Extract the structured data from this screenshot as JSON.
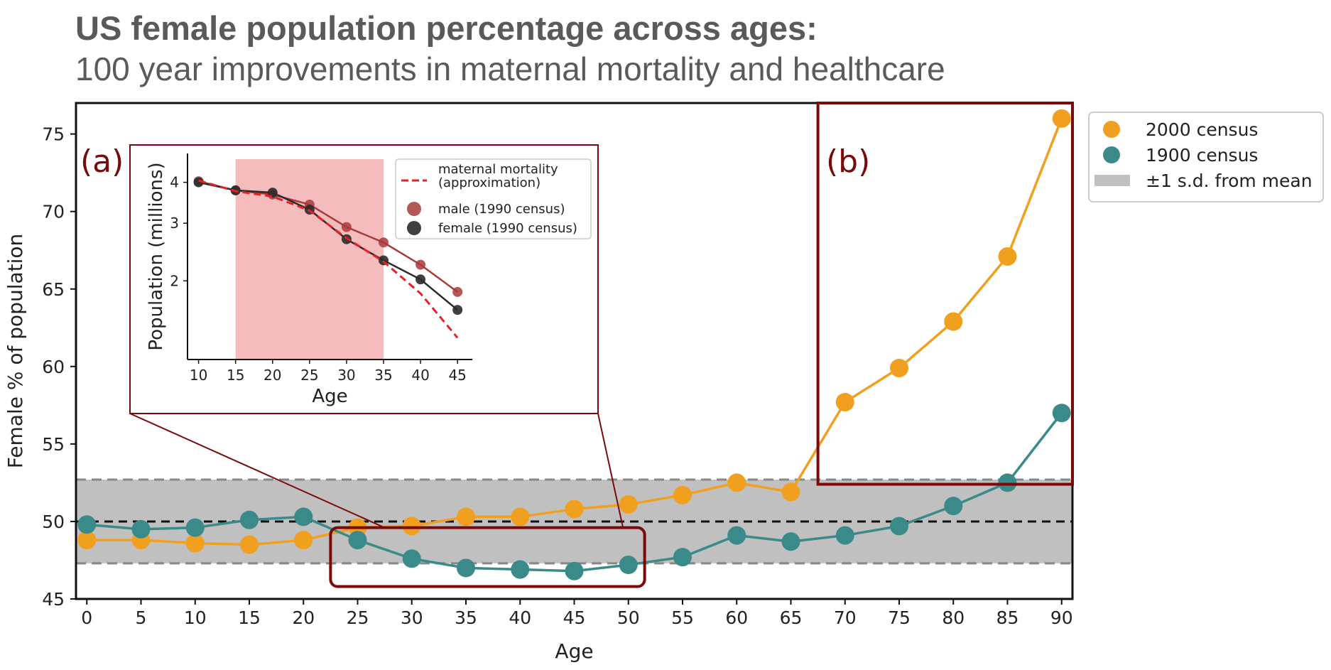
{
  "header": {
    "title": "US female population percentage across ages:",
    "subtitle": "100 year improvements in maternal mortality and healthcare"
  },
  "chart_data": [
    {
      "type": "scatter",
      "xlabel": "Age",
      "ylabel": "Female % of population",
      "xlim": [
        -1,
        91
      ],
      "ylim": [
        45,
        77
      ],
      "xticks": [
        0,
        5,
        10,
        15,
        20,
        25,
        30,
        35,
        40,
        45,
        50,
        55,
        60,
        65,
        70,
        75,
        80,
        85,
        90
      ],
      "yticks": [
        45,
        50,
        55,
        60,
        65,
        70,
        75
      ],
      "x": [
        0,
        5,
        10,
        15,
        20,
        25,
        30,
        35,
        40,
        45,
        50,
        55,
        60,
        65,
        70,
        75,
        80,
        85,
        90
      ],
      "series": [
        {
          "name": "2000 census",
          "color": "#f0a01e",
          "values": [
            48.8,
            48.8,
            48.6,
            48.5,
            48.8,
            49.6,
            49.7,
            50.3,
            50.3,
            50.8,
            51.1,
            51.7,
            52.5,
            51.9,
            57.7,
            59.9,
            62.9,
            67.1,
            76.0
          ]
        },
        {
          "name": "1900 census",
          "color": "#3a8a8a",
          "values": [
            49.8,
            49.5,
            49.6,
            50.1,
            50.3,
            48.8,
            47.6,
            47.0,
            46.9,
            46.8,
            47.2,
            47.7,
            49.1,
            48.7,
            49.1,
            49.7,
            51.0,
            52.5,
            57.0
          ]
        }
      ],
      "mean_line": 50,
      "band": {
        "name": "±1 s.d. from mean",
        "low": 47.3,
        "high": 52.7,
        "color": "#c0c0c0"
      },
      "legend": "outside top-right",
      "annotations": [
        "(a)",
        "(b)"
      ]
    },
    {
      "type": "line",
      "xlabel": "Age",
      "ylabel": "Population (millions)",
      "yscale": "log",
      "xlim": [
        8.5,
        47
      ],
      "ylim": [
        1.15,
        4.9
      ],
      "xticks": [
        10,
        15,
        20,
        25,
        30,
        35,
        40,
        45
      ],
      "yticks": [
        2,
        3,
        4
      ],
      "x": [
        10,
        15,
        20,
        25,
        30,
        35,
        40,
        45
      ],
      "highlight_span": [
        15,
        35
      ],
      "series": [
        {
          "name": "male (1990 census)",
          "color": "#a83a3a",
          "values": [
            4.03,
            3.78,
            3.67,
            3.42,
            2.92,
            2.62,
            2.24,
            1.85
          ]
        },
        {
          "name": "female (1990 census)",
          "color": "#2b2b2b",
          "values": [
            4.0,
            3.78,
            3.72,
            3.3,
            2.68,
            2.31,
            2.02,
            1.63
          ]
        },
        {
          "name": "maternal mortality\n(approximation)",
          "color": "#e8202a",
          "style": "dashed",
          "x": [
            10,
            15,
            20,
            25,
            30,
            35,
            40,
            45
          ],
          "values": [
            4.05,
            3.76,
            3.62,
            3.28,
            2.7,
            2.29,
            1.83,
            1.34
          ]
        }
      ],
      "legend": "top-right"
    }
  ]
}
